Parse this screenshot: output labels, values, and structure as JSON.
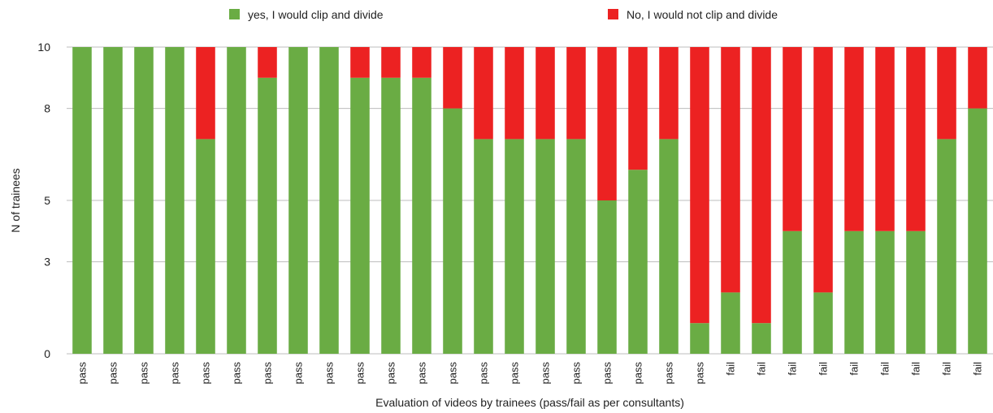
{
  "chart_data": {
    "type": "bar",
    "stacked": true,
    "title": "",
    "xlabel": "Evaluation of videos by trainees (pass/fail as per consultants)",
    "ylabel": "N of trainees",
    "ylim": [
      0,
      10
    ],
    "yticks": [
      0,
      3,
      5,
      8,
      10
    ],
    "grid": true,
    "legend_position": "top",
    "categories": [
      "pass",
      "pass",
      "pass",
      "pass",
      "pass",
      "pass",
      "pass",
      "pass",
      "pass",
      "pass",
      "pass",
      "pass",
      "pass",
      "pass",
      "pass",
      "pass",
      "pass",
      "pass",
      "pass",
      "pass",
      "pass",
      "fail",
      "fail",
      "fail",
      "fail",
      "fail",
      "fail",
      "fail",
      "fail",
      "fail"
    ],
    "series": [
      {
        "name": "yes, I would clip and divide",
        "color": "#6aac44",
        "values": [
          10,
          10,
          10,
          10,
          7,
          10,
          9,
          10,
          10,
          9,
          9,
          9,
          8,
          7,
          7,
          7,
          7,
          5,
          6,
          7,
          1,
          2,
          1,
          4,
          2,
          4,
          4,
          4,
          7,
          8
        ]
      },
      {
        "name": "No, I would not clip and divide",
        "color": "#ec2222",
        "values": [
          0,
          0,
          0,
          0,
          3,
          0,
          1,
          0,
          0,
          1,
          1,
          1,
          2,
          3,
          3,
          3,
          3,
          5,
          4,
          3,
          9,
          8,
          9,
          6,
          8,
          6,
          6,
          6,
          3,
          2
        ]
      }
    ]
  }
}
